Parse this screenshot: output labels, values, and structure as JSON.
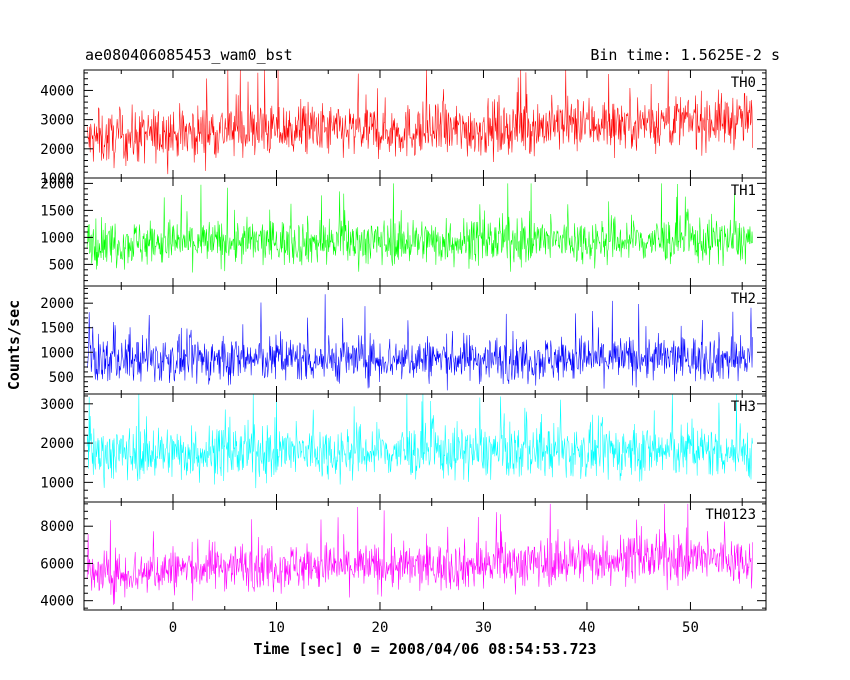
{
  "header": {
    "title": "ae080406085453_wam0_bst",
    "bin_time": "Bin time: 1.5625E-2 s"
  },
  "axes": {
    "xlabel": "Time [sec] 0 = 2008/04/06 08:54:53.723",
    "ylabel": "Counts/sec",
    "x_range": [
      -8.6,
      57.3
    ],
    "x_ticks": [
      0,
      10,
      20,
      30,
      40,
      50
    ],
    "x_data_range": [
      -8.3,
      56.0
    ]
  },
  "chart_data": [
    {
      "type": "line",
      "name": "TH0",
      "color": "#ff0000",
      "ylim": [
        1000,
        4700
      ],
      "yticks": [
        1000,
        2000,
        3000,
        4000
      ],
      "trend": [
        {
          "t": -8,
          "mean": 2300
        },
        {
          "t": 5,
          "mean": 2650
        },
        {
          "t": 25,
          "mean": 2600
        },
        {
          "t": 40,
          "mean": 2850
        },
        {
          "t": 56,
          "mean": 3000
        }
      ],
      "spread": 650,
      "spike_max": 4700,
      "floor": 1050
    },
    {
      "type": "line",
      "name": "TH1",
      "color": "#00ff00",
      "ylim": [
        100,
        2100
      ],
      "yticks": [
        500,
        1000,
        1500,
        2000
      ],
      "trend": [
        {
          "t": -8,
          "mean": 900
        },
        {
          "t": 56,
          "mean": 950
        }
      ],
      "spread": 300,
      "spike_max": 2000,
      "floor": 150
    },
    {
      "type": "line",
      "name": "TH2",
      "color": "#0000ff",
      "ylim": [
        150,
        2350
      ],
      "yticks": [
        500,
        1000,
        1500,
        2000
      ],
      "trend": [
        {
          "t": -8,
          "mean": 850
        },
        {
          "t": 56,
          "mean": 880
        }
      ],
      "spread": 330,
      "spike_max": 2300,
      "floor": 200
    },
    {
      "type": "line",
      "name": "TH3",
      "color": "#00ffff",
      "ylim": [
        500,
        3250
      ],
      "yticks": [
        1000,
        2000,
        3000
      ],
      "trend": [
        {
          "t": -8,
          "mean": 1750
        },
        {
          "t": 56,
          "mean": 1800
        }
      ],
      "spread": 480,
      "spike_max": 3250,
      "floor": 550
    },
    {
      "type": "line",
      "name": "TH0123",
      "color": "#ff00ff",
      "ylim": [
        3500,
        9300
      ],
      "yticks": [
        4000,
        6000,
        8000
      ],
      "trend": [
        {
          "t": -8,
          "mean": 5300
        },
        {
          "t": 5,
          "mean": 5900
        },
        {
          "t": 25,
          "mean": 5800
        },
        {
          "t": 45,
          "mean": 6300
        },
        {
          "t": 56,
          "mean": 6200
        }
      ],
      "spread": 900,
      "spike_max": 9200,
      "floor": 3550
    }
  ]
}
